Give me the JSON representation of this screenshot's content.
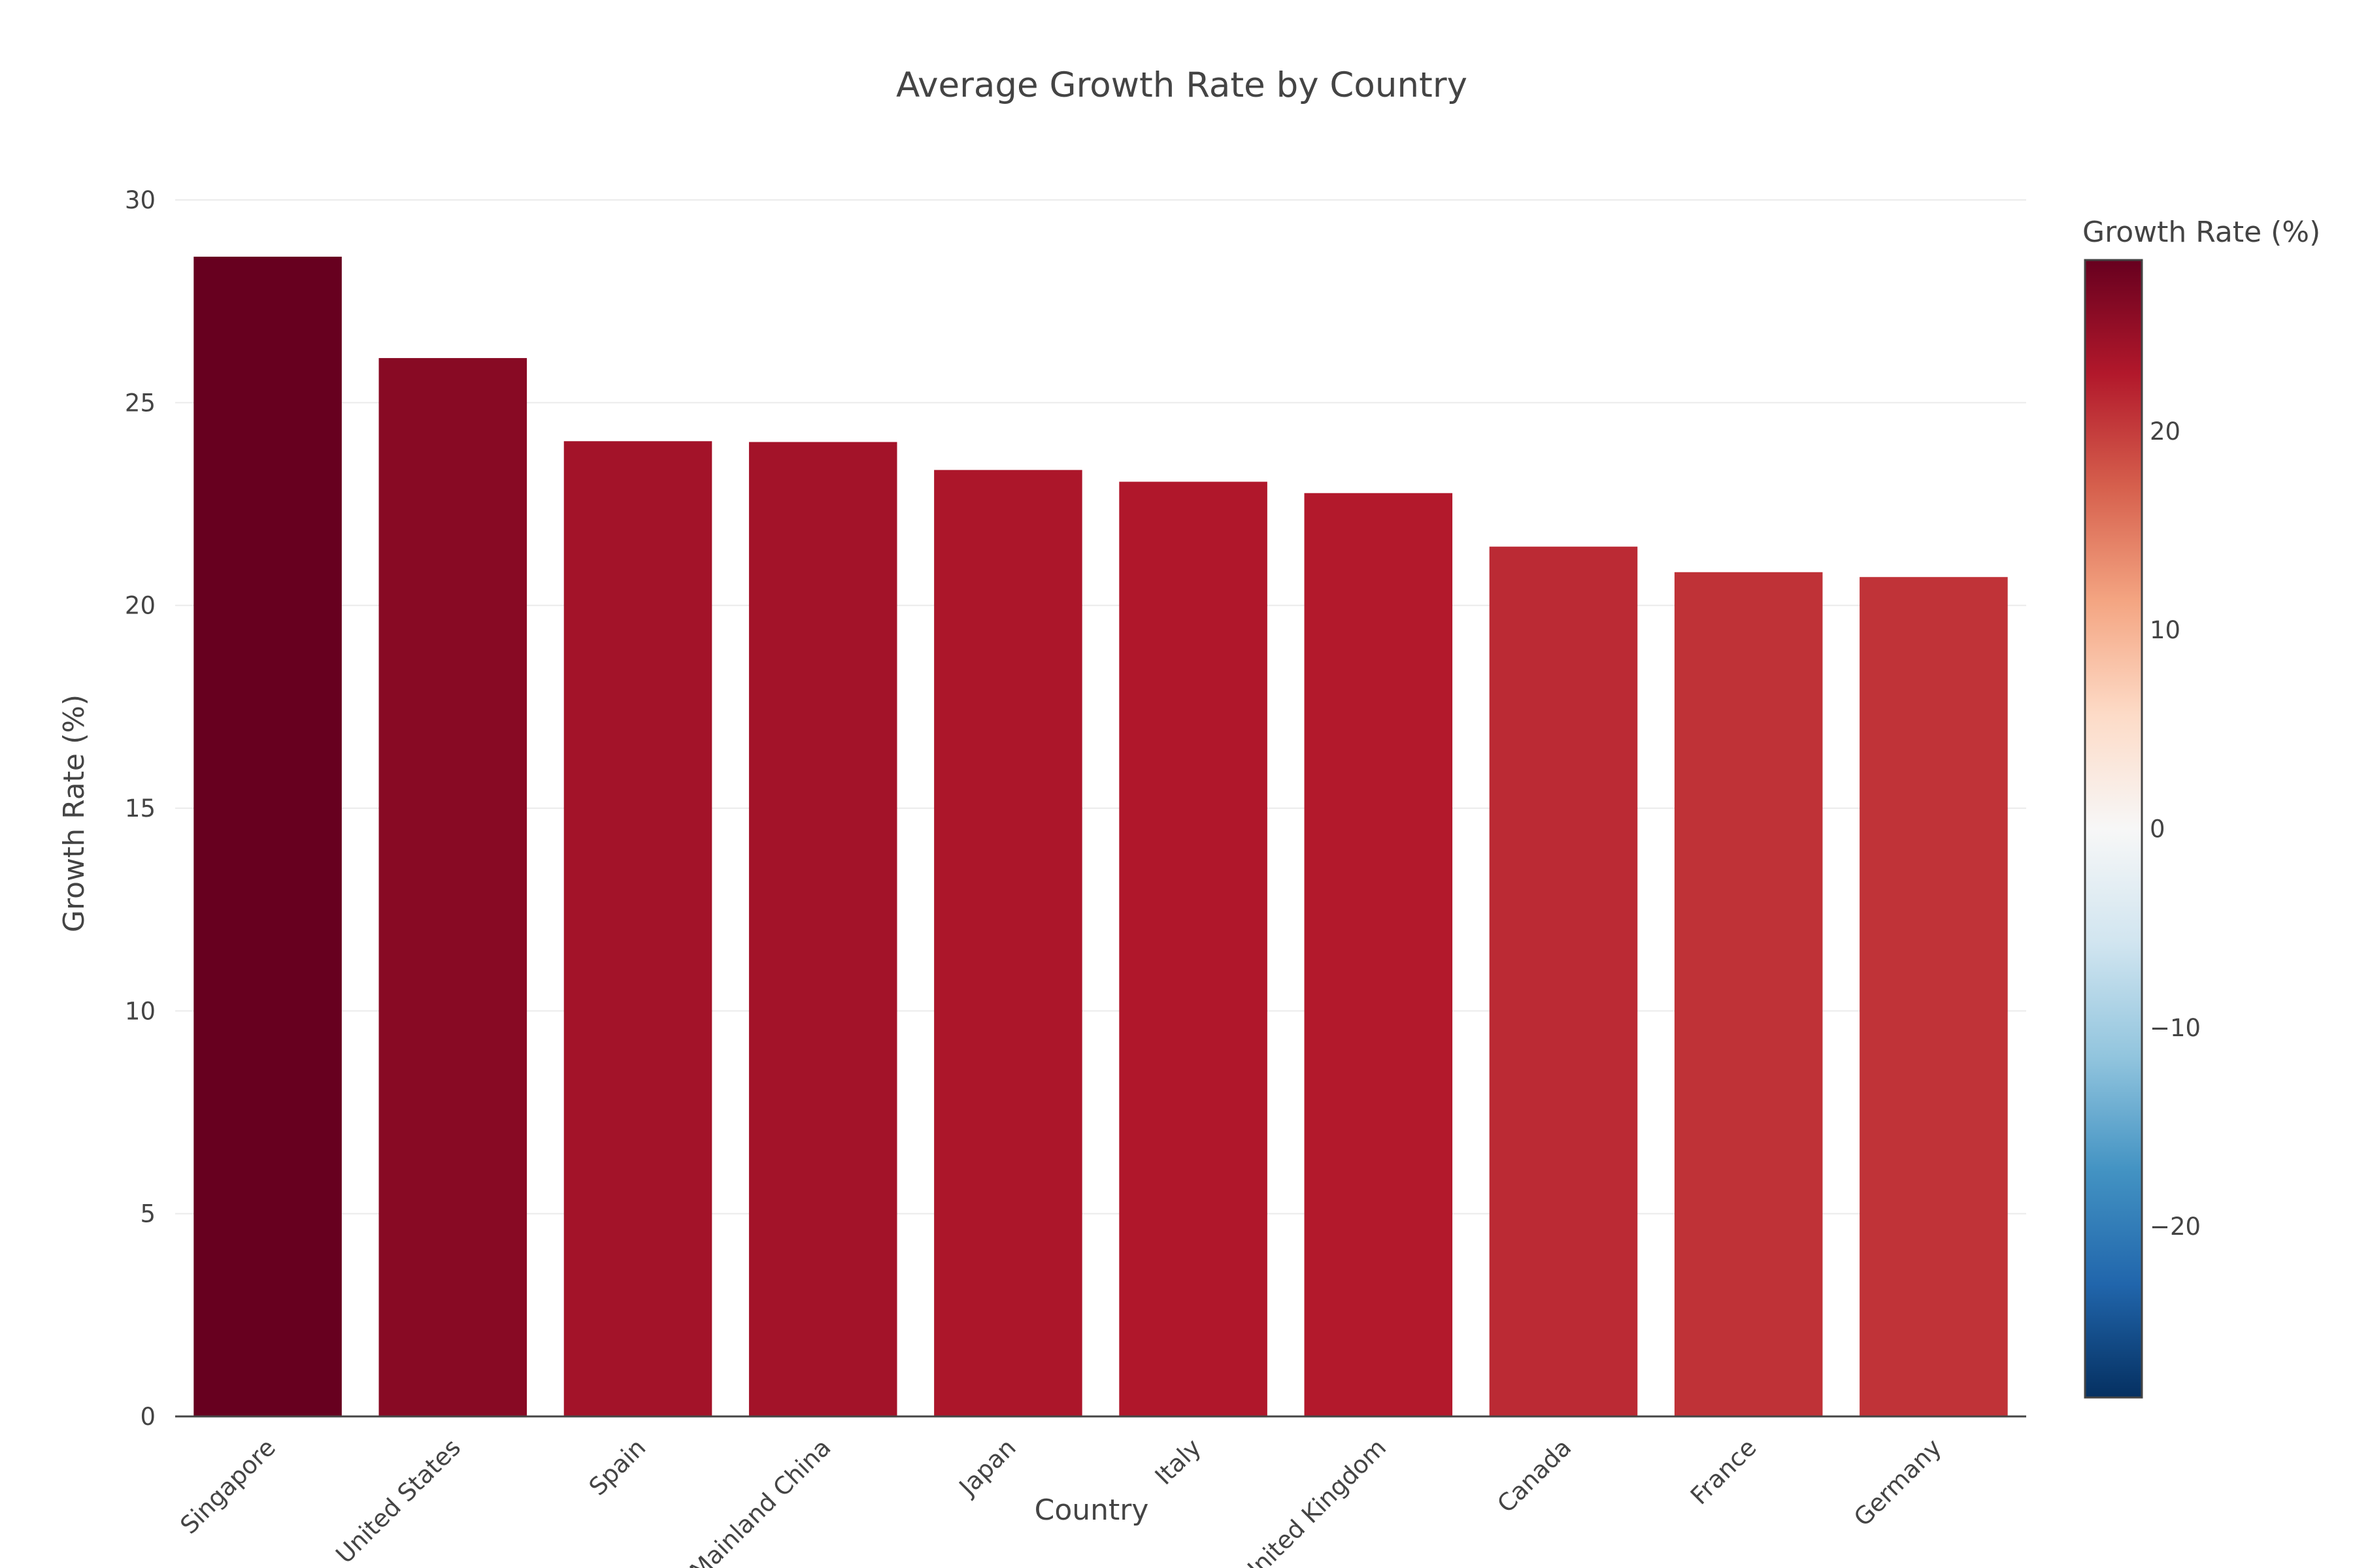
{
  "chart_data": {
    "type": "bar",
    "title": "Average Growth Rate by Country",
    "xlabel": "Country",
    "ylabel": "Growth Rate (%)",
    "ylim": [
      0,
      30
    ],
    "yticks": [
      0,
      5,
      10,
      15,
      20,
      25,
      30
    ],
    "grid": true,
    "categories": [
      "Singapore",
      "United States",
      "Spain",
      "Mainland China",
      "Japan",
      "Italy",
      "United Kingdom",
      "Canada",
      "France",
      "Germany"
    ],
    "values": [
      28.6,
      26.1,
      24.05,
      24.03,
      23.34,
      23.05,
      22.77,
      21.45,
      20.82,
      20.7
    ],
    "colorbar": {
      "title": "Growth Rate (%)",
      "range": [
        -28.6,
        28.6
      ],
      "ticks": [
        20,
        10,
        0,
        -10,
        -20
      ],
      "tick_labels": [
        "20",
        "10",
        "0",
        "−10",
        "−20"
      ],
      "colorscale": [
        "#053061",
        "#2166ac",
        "#4393c3",
        "#92c5de",
        "#d1e5f0",
        "#f7f7f7",
        "#fddbc7",
        "#f4a582",
        "#d6604d",
        "#b2182b",
        "#67001f"
      ],
      "placement": "right"
    }
  }
}
